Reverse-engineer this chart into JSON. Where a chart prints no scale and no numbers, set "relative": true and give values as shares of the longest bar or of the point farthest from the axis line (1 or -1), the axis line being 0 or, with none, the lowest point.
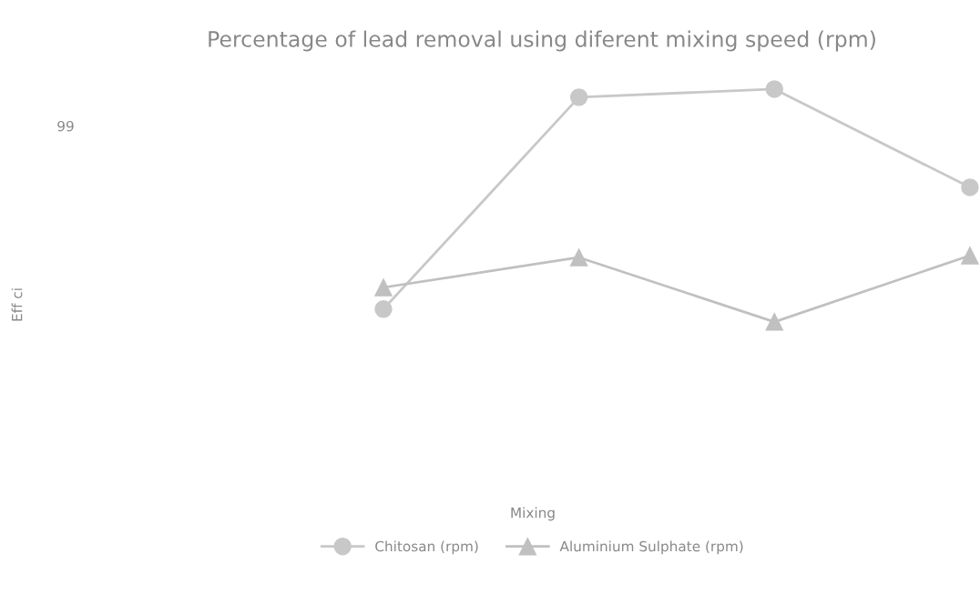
{
  "chart_data": {
    "type": "line",
    "title": "Percentage of lead removal using diferent mixing speed (rpm)",
    "annotations": [
      "99",
      "Mixing",
      "Eff ci"
    ],
    "categories": [
      null,
      null,
      null,
      null
    ],
    "relative": true,
    "series": [
      {
        "name": "Chitosan (rpm)",
        "color": "#c8c8c8",
        "marker": "circle",
        "values": [
          0.055,
          0.965,
          1,
          0.578
        ]
      },
      {
        "name": "Aluminium Sulphate (rpm)",
        "color": "#c0c0c0",
        "marker": "triangle",
        "values": [
          0.148,
          0.277,
          0,
          0.285
        ]
      }
    ],
    "legend": "bottom",
    "grid": false
  }
}
